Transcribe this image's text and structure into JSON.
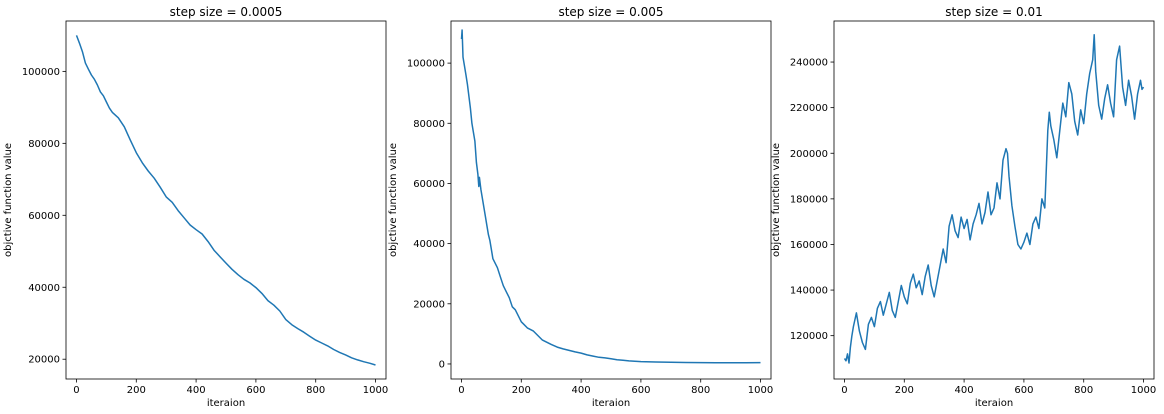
{
  "chart_data": [
    {
      "type": "line",
      "title": "step size = 0.0005",
      "xlabel": "iteraion",
      "ylabel": "objctive function value",
      "xlim": [
        -35,
        1035
      ],
      "ylim": [
        14500,
        114000
      ],
      "xticks": [
        0,
        200,
        400,
        600,
        800,
        1000
      ],
      "yticks": [
        20000,
        40000,
        60000,
        80000,
        100000
      ],
      "grid": false,
      "color": "#1f77b4",
      "series": [
        {
          "x": [
            0,
            10,
            20,
            30,
            40,
            50,
            60,
            70,
            80,
            90,
            100,
            110,
            120,
            140,
            160,
            180,
            200,
            220,
            240,
            260,
            280,
            300,
            320,
            340,
            360,
            380,
            400,
            420,
            440,
            460,
            480,
            500,
            520,
            540,
            560,
            580,
            600,
            620,
            640,
            660,
            680,
            700,
            720,
            740,
            760,
            780,
            800,
            820,
            840,
            860,
            880,
            900,
            920,
            940,
            960,
            980,
            1000
          ],
          "y": [
            110000,
            107800,
            105500,
            102300,
            100600,
            99000,
            97800,
            96200,
            94300,
            93200,
            91500,
            89800,
            88600,
            87100,
            84600,
            80900,
            77400,
            74600,
            72300,
            70300,
            67800,
            65100,
            63600,
            61300,
            59300,
            57300,
            56000,
            54800,
            52700,
            50300,
            48500,
            46700,
            45000,
            43500,
            42200,
            41200,
            39900,
            38300,
            36300,
            35000,
            33400,
            31000,
            29600,
            28500,
            27500,
            26400,
            25300,
            24500,
            23700,
            22700,
            21900,
            21200,
            20400,
            19800,
            19300,
            18900,
            18400
          ]
        }
      ]
    },
    {
      "type": "line",
      "title": "step size = 0.005",
      "xlabel": "iteraion",
      "ylabel": "objctive function value",
      "xlim": [
        -35,
        1035
      ],
      "ylim": [
        -5000,
        114000
      ],
      "xticks": [
        0,
        200,
        400,
        600,
        800,
        1000
      ],
      "yticks": [
        0,
        20000,
        40000,
        60000,
        80000,
        100000
      ],
      "grid": false,
      "color": "#1f77b4",
      "series": [
        {
          "x": [
            0,
            2,
            5,
            10,
            15,
            20,
            25,
            30,
            35,
            40,
            45,
            50,
            55,
            58,
            60,
            65,
            70,
            75,
            80,
            85,
            90,
            95,
            100,
            105,
            110,
            120,
            130,
            140,
            150,
            160,
            170,
            180,
            190,
            200,
            210,
            220,
            230,
            240,
            250,
            260,
            270,
            280,
            290,
            300,
            320,
            340,
            360,
            380,
            400,
            420,
            440,
            460,
            480,
            500,
            520,
            540,
            560,
            580,
            600,
            650,
            700,
            750,
            800,
            850,
            900,
            950,
            1000
          ],
          "y": [
            108000,
            111000,
            102000,
            99000,
            96000,
            93000,
            89000,
            85000,
            80000,
            77000,
            74000,
            67000,
            63000,
            59000,
            62000,
            58000,
            55000,
            52000,
            49000,
            46000,
            43000,
            41000,
            38000,
            35000,
            34000,
            32000,
            29000,
            26000,
            24000,
            22000,
            19000,
            18000,
            16000,
            14000,
            13000,
            12000,
            11500,
            11000,
            10000,
            9000,
            8000,
            7500,
            7000,
            6500,
            5600,
            5000,
            4500,
            4000,
            3600,
            3000,
            2600,
            2200,
            2000,
            1700,
            1400,
            1200,
            1000,
            900,
            800,
            650,
            550,
            500,
            450,
            420,
            400,
            400,
            450
          ]
        }
      ]
    },
    {
      "type": "line",
      "title": "step size = 0.01",
      "xlabel": "iteraion",
      "ylabel": "objctive function value",
      "xlim": [
        -35,
        1035
      ],
      "ylim": [
        101000,
        258000
      ],
      "xticks": [
        0,
        200,
        400,
        600,
        800,
        1000
      ],
      "yticks": [
        120000,
        140000,
        160000,
        180000,
        200000,
        220000,
        240000
      ],
      "grid": false,
      "color": "#1f77b4",
      "series": [
        {
          "x": [
            0,
            5,
            10,
            15,
            20,
            25,
            30,
            40,
            50,
            60,
            70,
            80,
            90,
            100,
            110,
            120,
            130,
            140,
            150,
            160,
            170,
            180,
            190,
            200,
            210,
            220,
            230,
            240,
            250,
            260,
            270,
            280,
            290,
            300,
            310,
            320,
            330,
            340,
            350,
            360,
            370,
            380,
            390,
            400,
            410,
            420,
            430,
            440,
            450,
            460,
            470,
            480,
            490,
            500,
            510,
            520,
            530,
            540,
            545,
            550,
            560,
            570,
            580,
            590,
            600,
            610,
            620,
            630,
            640,
            650,
            660,
            670,
            680,
            685,
            690,
            700,
            710,
            720,
            730,
            740,
            750,
            760,
            770,
            780,
            790,
            800,
            810,
            820,
            830,
            835,
            840,
            850,
            860,
            870,
            880,
            890,
            900,
            910,
            920,
            930,
            940,
            950,
            960,
            970,
            980,
            990,
            995,
            1000
          ],
          "y": [
            110000,
            109000,
            112000,
            108000,
            115000,
            120000,
            124000,
            130000,
            122000,
            117000,
            114000,
            125000,
            128000,
            124000,
            132000,
            135000,
            129000,
            134000,
            139000,
            131000,
            128000,
            135000,
            142000,
            137000,
            134000,
            143000,
            147000,
            141000,
            144000,
            138000,
            146000,
            151000,
            142000,
            137000,
            144000,
            151000,
            158000,
            152000,
            168000,
            173000,
            166000,
            163000,
            172000,
            167000,
            171000,
            162000,
            169000,
            173000,
            178000,
            169000,
            174000,
            183000,
            173000,
            176000,
            187000,
            180000,
            197000,
            202000,
            200000,
            190000,
            177000,
            168000,
            160000,
            158000,
            161000,
            165000,
            160000,
            169000,
            172000,
            167000,
            180000,
            176000,
            210000,
            218000,
            212000,
            206000,
            198000,
            210000,
            222000,
            216000,
            231000,
            226000,
            214000,
            208000,
            219000,
            213000,
            226000,
            235000,
            241000,
            252000,
            236000,
            221000,
            215000,
            224000,
            230000,
            222000,
            216000,
            241000,
            247000,
            229000,
            221000,
            232000,
            225000,
            215000,
            226000,
            232000,
            228000,
            229000
          ]
        }
      ]
    }
  ]
}
